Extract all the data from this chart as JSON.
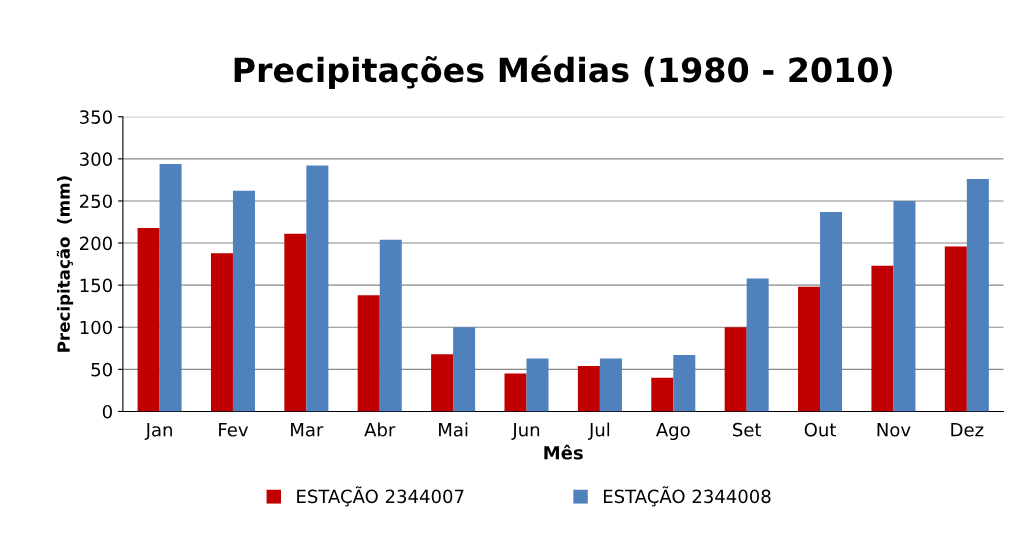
{
  "chart_data": {
    "type": "bar",
    "title": "Precipitações Médias (1980 - 2010)",
    "xlabel": "Mês",
    "ylabel": "Precipitação  (mm)",
    "categories": [
      "Jan",
      "Fev",
      "Mar",
      "Abr",
      "Mai",
      "Jun",
      "Jul",
      "Ago",
      "Set",
      "Out",
      "Nov",
      "Dez"
    ],
    "series": [
      {
        "name": "ESTAÇÃO 2344007",
        "color": "#c00000",
        "values": [
          218,
          188,
          211,
          138,
          68,
          45,
          54,
          40,
          100,
          148,
          173,
          196
        ]
      },
      {
        "name": "ESTAÇÃO 2344008",
        "color": "#4f81bd",
        "values": [
          294,
          262,
          292,
          204,
          100,
          63,
          63,
          67,
          158,
          237,
          250,
          276
        ]
      }
    ],
    "ylim": [
      0,
      350
    ],
    "yticks": [
      0,
      50,
      100,
      150,
      200,
      250,
      300,
      350
    ],
    "grid": "y",
    "legend": "bottom"
  }
}
